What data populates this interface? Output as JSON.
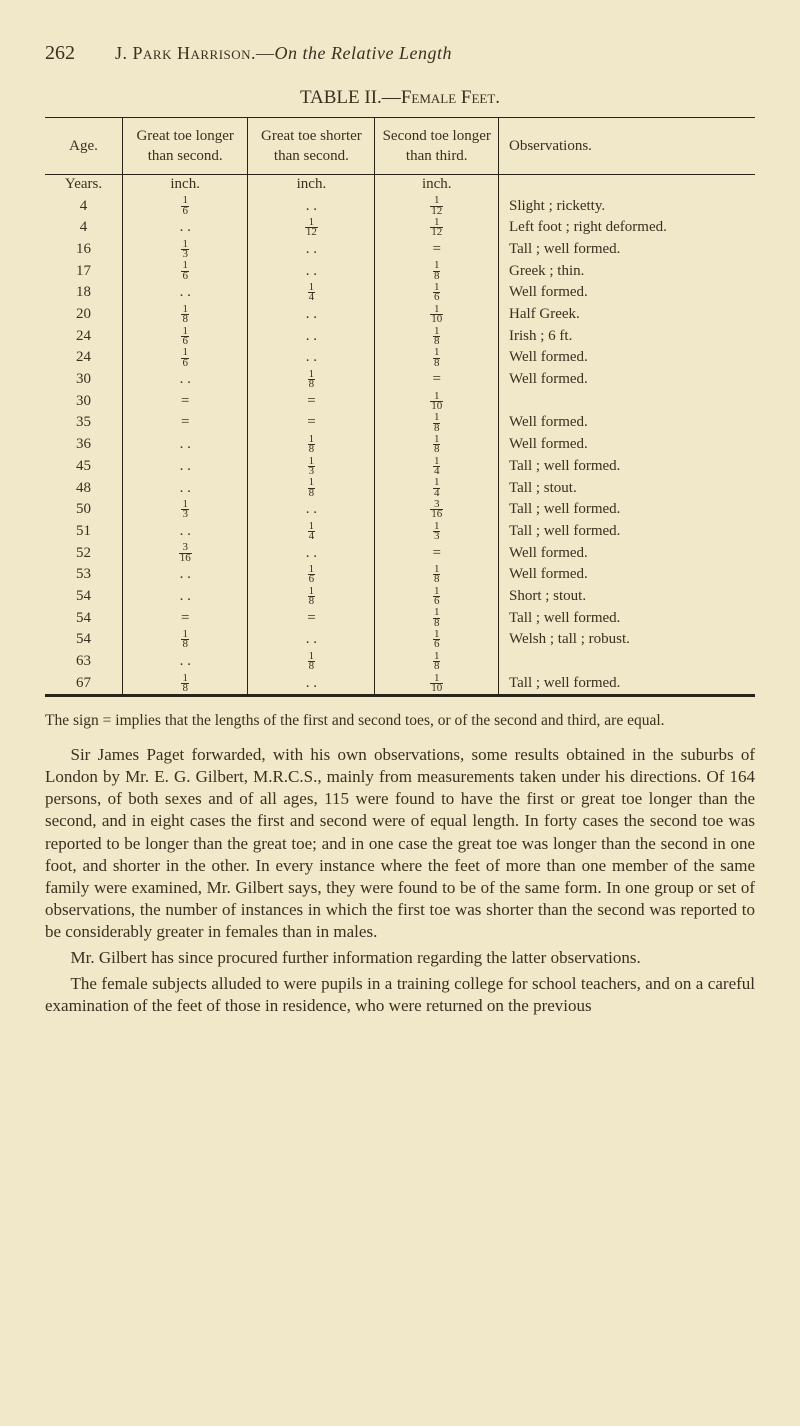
{
  "page_number": "262",
  "running_head_author": "J. Park Harrison.",
  "running_head_title": "On the Relative Length",
  "table_title_prefix": "TABLE II.—",
  "table_title_sc": "Female Feet.",
  "columns": {
    "age": "Age.",
    "gt_longer": "Great toe longer than second.",
    "gt_shorter": "Great toe shorter than second.",
    "second_longer": "Second toe longer than third.",
    "obs": "Observations."
  },
  "unit_row": {
    "age": "Years.",
    "c2": "inch.",
    "c3": "inch.",
    "c4": "inch."
  },
  "rows": [
    {
      "age": "4",
      "c2": "1/6",
      "c3": "..",
      "c4": "1/12",
      "obs": "Slight ; ricketty."
    },
    {
      "age": "4",
      "c2": "..",
      "c3": "1/12",
      "c4": "1/12",
      "obs": "Left foot ; right deformed."
    },
    {
      "age": "16",
      "c2": "1/3",
      "c3": "..",
      "c4": "=",
      "obs": "Tall ; well formed."
    },
    {
      "age": "17",
      "c2": "1/6",
      "c3": "..",
      "c4": "1/8",
      "obs": "Greek ; thin."
    },
    {
      "age": "18",
      "c2": "..",
      "c3": "1/4",
      "c4": "1/6",
      "obs": "Well formed."
    },
    {
      "age": "20",
      "c2": "1/8",
      "c3": "..",
      "c4": "1/10",
      "obs": "Half Greek."
    },
    {
      "age": "24",
      "c2": "1/6",
      "c3": "..",
      "c4": "1/8",
      "obs": "Irish ; 6 ft."
    },
    {
      "age": "24",
      "c2": "1/6",
      "c3": "..",
      "c4": "1/8",
      "obs": "Well formed."
    },
    {
      "age": "30",
      "c2": "..",
      "c3": "1/8",
      "c4": "=",
      "obs": "Well formed."
    },
    {
      "age": "30",
      "c2": "=",
      "c3": "=",
      "c4": "1/10",
      "obs": ""
    },
    {
      "age": "35",
      "c2": "=",
      "c3": "=",
      "c4": "1/8",
      "obs": "Well formed."
    },
    {
      "age": "36",
      "c2": "..",
      "c3": "1/8",
      "c4": "1/8",
      "obs": "Well formed."
    },
    {
      "age": "45",
      "c2": "..",
      "c3": "1/3",
      "c4": "1/4",
      "obs": "Tall ; well formed."
    },
    {
      "age": "48",
      "c2": "..",
      "c3": "1/8",
      "c4": "1/4",
      "obs": "Tall ; stout."
    },
    {
      "age": "50",
      "c2": "1/3",
      "c3": "..",
      "c4": "3/16",
      "obs": "Tall ; well formed."
    },
    {
      "age": "51",
      "c2": "..",
      "c3": "1/4",
      "c4": "1/3",
      "obs": "Tall ; well formed."
    },
    {
      "age": "52",
      "c2": "3/16",
      "c3": "..",
      "c4": "=",
      "obs": "Well formed."
    },
    {
      "age": "53",
      "c2": "..",
      "c3": "1/6",
      "c4": "1/8",
      "obs": "Well formed."
    },
    {
      "age": "54",
      "c2": "..",
      "c3": "1/8",
      "c4": "1/6",
      "obs": "Short ; stout."
    },
    {
      "age": "54",
      "c2": "=",
      "c3": "=",
      "c4": "1/8",
      "obs": "Tall ; well formed."
    },
    {
      "age": "54",
      "c2": "1/8",
      "c3": "..",
      "c4": "1/6",
      "obs": "Welsh ; tall ; robust."
    },
    {
      "age": "63",
      "c2": "..",
      "c3": "1/8",
      "c4": "1/8",
      "obs": ""
    },
    {
      "age": "67",
      "c2": "1/8",
      "c3": "..",
      "c4": "1/10",
      "obs": "Tall ; well formed."
    }
  ],
  "note_text": "The sign = implies that the lengths of the first and second toes, or of the second and third, are equal.",
  "para1": "Sir James Paget forwarded, with his own observations, some results obtained in the suburbs of London by Mr. E. G. Gilbert, M.R.C.S., mainly from measurements taken under his directions. Of 164 persons, of both sexes and of all ages, 115 were found to have the first or great toe longer than the second, and in eight cases the first and second were of equal length. In forty cases the second toe was reported to be longer than the great toe; and in one case the great toe was longer than the second in one foot, and shorter in the other. In every instance where the feet of more than one member of the same family were examined, Mr. Gilbert says, they were found to be of the same form. In one group or set of observations, the number of instances in which the first toe was shorter than the second was reported to be considerably greater in females than in males.",
  "para2": "Mr. Gilbert has since procured further information regarding the latter observations.",
  "para3": "The female subjects alluded to were pupils in a training college for school teachers, and on a careful examination of the feet of those in residence, who were returned on the previous"
}
